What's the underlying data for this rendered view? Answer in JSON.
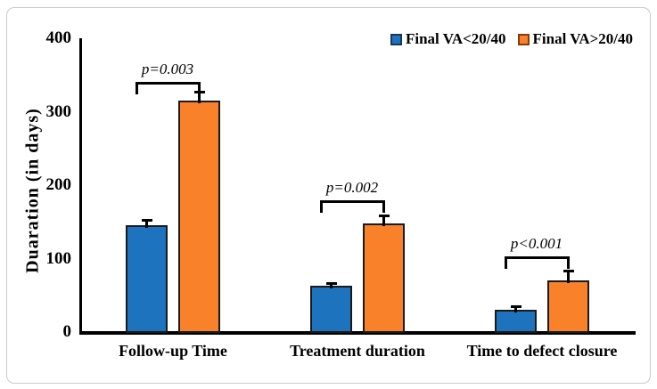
{
  "figure": {
    "background": "#ffffff",
    "border_color": "#cbcbcb"
  },
  "chart_data": {
    "type": "bar",
    "title": "",
    "xlabel": "",
    "ylabel": "Duaration (in days)",
    "ylim": [
      0,
      400
    ],
    "yticks": [
      0,
      100,
      200,
      300,
      400
    ],
    "grid": false,
    "legend_position": "top-right",
    "categories": [
      "Follow-up Time",
      "Treatment duration",
      "Time to defect closure"
    ],
    "series": [
      {
        "name": "Final VA<20/40",
        "color": "#1e73be",
        "swatch_border": "#17365d",
        "values": [
          145,
          63,
          30
        ],
        "errors_plus": [
          7,
          3,
          4
        ]
      },
      {
        "name": "Final VA>20/40",
        "color": "#f8812a",
        "swatch_border": "#843c0c",
        "values": [
          315,
          148,
          70
        ],
        "errors_plus": [
          11,
          10,
          12
        ]
      }
    ],
    "annotations": [
      {
        "group": "Follow-up Time",
        "label": "p=0.003"
      },
      {
        "group": "Treatment duration",
        "label": "p=0.002"
      },
      {
        "group": "Time to defect closure",
        "label": "p<0.001"
      }
    ]
  }
}
